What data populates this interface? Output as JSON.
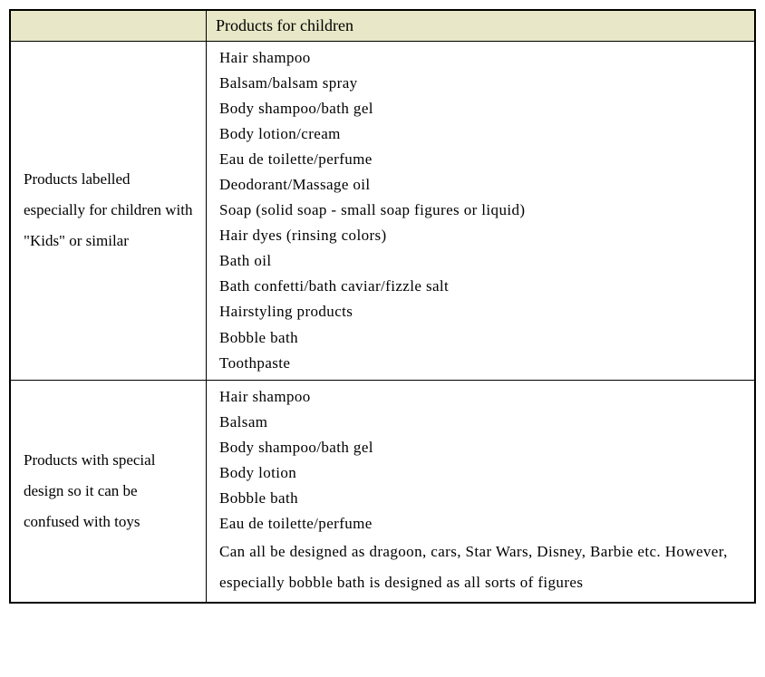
{
  "header": {
    "left": "",
    "right": "Products for children"
  },
  "rows": [
    {
      "label": "Products labelled especially for children with \"Kids\" or similar",
      "items": [
        "Hair shampoo",
        "Balsam/balsam spray",
        "Body shampoo/bath gel",
        "Body lotion/cream",
        "Eau de toilette/perfume",
        "Deodorant/Massage oil",
        "Soap (solid soap - small soap figures or liquid)",
        "Hair dyes (rinsing colors)",
        "Bath oil",
        "Bath confetti/bath caviar/fizzle salt",
        "Hairstyling products",
        "Bobble bath",
        "Toothpaste"
      ]
    },
    {
      "label": "Products with special design so it can be confused with toys",
      "items": [
        "Hair shampoo",
        "Balsam",
        "Body shampoo/bath gel",
        "Body lotion",
        "Bobble bath",
        "Eau de toilette/perfume",
        "Can all be designed as dragoon, cars, Star Wars, Disney, Barbie etc. However, especially bobble bath is designed as all sorts of figures"
      ]
    }
  ],
  "style": {
    "header_bg": "#e8e8c8",
    "border_color": "#000000",
    "font_family": "Times New Roman",
    "base_fontsize_pt": 13,
    "text_color": "#000000",
    "background_color": "#ffffff"
  }
}
